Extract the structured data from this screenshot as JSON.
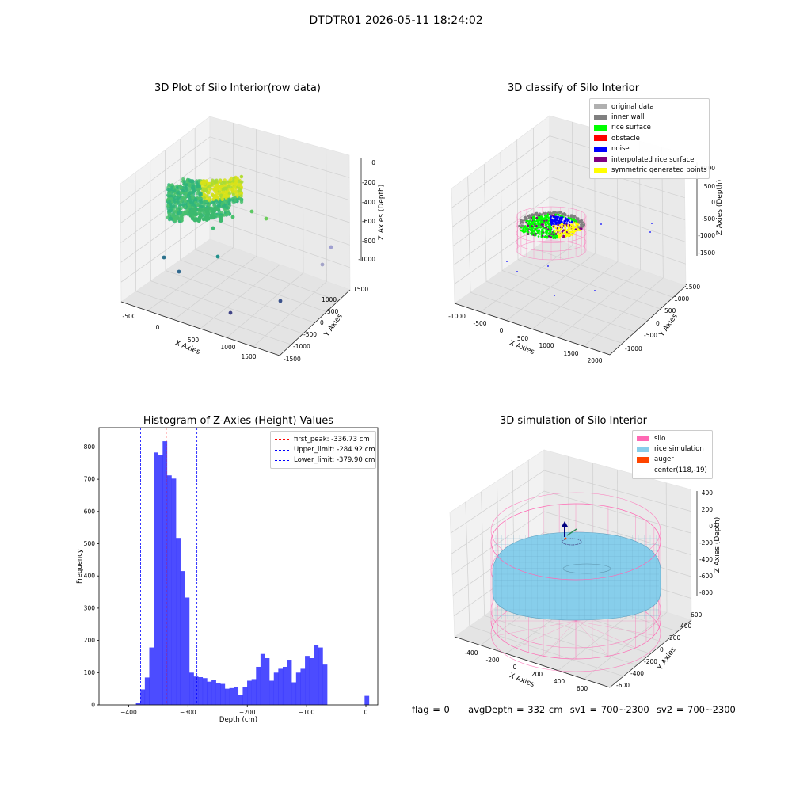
{
  "suptitle": "DTDTR01 2026-05-11 18:24:02",
  "panels": {
    "raw": {
      "title": "3D Plot of Silo Interior(row data)",
      "xlabel": "X Axies",
      "ylabel": "Y Axies",
      "zlabel": "Z Axies (Depth)",
      "xticks": [
        "-500",
        "0",
        "500",
        "1000",
        "1500"
      ],
      "yticks": [
        "1500",
        "1000",
        "500",
        "0",
        "-500",
        "-1000",
        "-1500"
      ],
      "zticks": [
        "0",
        "-200",
        "-400",
        "-600",
        "-800",
        "-1000"
      ]
    },
    "classify": {
      "title": "3D classify of Silo Interior",
      "xlabel": "X Axies",
      "ylabel": "Y Axies",
      "zlabel": "Z Axies (Depth)",
      "xticks": [
        "-1000",
        "-500",
        "0",
        "500",
        "1000",
        "1500",
        "2000"
      ],
      "yticks": [
        "1500",
        "1000",
        "500",
        "0",
        "-500",
        "-1000"
      ],
      "zticks": [
        "1000",
        "500",
        "0",
        "-500",
        "-1000",
        "-1500"
      ],
      "legend": [
        {
          "label": "original data",
          "color": "#b0b0b0"
        },
        {
          "label": "inner wall",
          "color": "#808080"
        },
        {
          "label": "rice surface",
          "color": "#00ff00"
        },
        {
          "label": "obstacle",
          "color": "#ff0000"
        },
        {
          "label": "noise",
          "color": "#0000ff"
        },
        {
          "label": "interpolated rice surface",
          "color": "#800080"
        },
        {
          "label": "symmetric generated points",
          "color": "#ffff00"
        }
      ]
    },
    "simulation": {
      "title": "3D simulation of Silo Interior",
      "xlabel": "X Axies",
      "ylabel": "Y Axies",
      "zlabel": "Z Axies (Depth)",
      "xticks": [
        "-400",
        "-200",
        "0",
        "200",
        "400",
        "600"
      ],
      "yticks": [
        "600",
        "400",
        "200",
        "0",
        "-200",
        "-400",
        "-600"
      ],
      "zticks": [
        "400",
        "200",
        "0",
        "-200",
        "-400",
        "-600",
        "-800"
      ],
      "legend": [
        {
          "label": "silo",
          "color": "#ff69b4"
        },
        {
          "label": "rice simulation",
          "color": "#87ceeb"
        },
        {
          "label": "auger",
          "color": "#ff4500"
        },
        {
          "label": "center(118,-19)",
          "color": ""
        }
      ]
    }
  },
  "chart_data": {
    "type": "bar",
    "title": "Histogram of Z-Axies (Height) Values",
    "xlabel": "Depth (cm)",
    "ylabel": "Frequency",
    "xlim": [
      -450,
      20
    ],
    "ylim": [
      0,
      860
    ],
    "xticks": [
      -400,
      -300,
      -200,
      -100,
      0
    ],
    "yticks": [
      0,
      100,
      200,
      300,
      400,
      500,
      600,
      700,
      800
    ],
    "bar_color": "#0000ff",
    "bin_width": 7.5,
    "bins": [
      {
        "x": -384,
        "value": 5
      },
      {
        "x": -376.5,
        "value": 48
      },
      {
        "x": -369,
        "value": 85
      },
      {
        "x": -361.5,
        "value": 178
      },
      {
        "x": -354,
        "value": 783
      },
      {
        "x": -346.5,
        "value": 775
      },
      {
        "x": -339,
        "value": 818
      },
      {
        "x": -331.5,
        "value": 712
      },
      {
        "x": -324,
        "value": 702
      },
      {
        "x": -316.5,
        "value": 518
      },
      {
        "x": -309,
        "value": 415
      },
      {
        "x": -301.5,
        "value": 333
      },
      {
        "x": -294,
        "value": 100
      },
      {
        "x": -286.5,
        "value": 88
      },
      {
        "x": -279,
        "value": 86
      },
      {
        "x": -271.5,
        "value": 83
      },
      {
        "x": -264,
        "value": 72
      },
      {
        "x": -256.5,
        "value": 78
      },
      {
        "x": -249,
        "value": 68
      },
      {
        "x": -241.5,
        "value": 65
      },
      {
        "x": -234,
        "value": 50
      },
      {
        "x": -226.5,
        "value": 52
      },
      {
        "x": -219,
        "value": 55
      },
      {
        "x": -211.5,
        "value": 30
      },
      {
        "x": -204,
        "value": 55
      },
      {
        "x": -196.5,
        "value": 75
      },
      {
        "x": -189,
        "value": 80
      },
      {
        "x": -181.5,
        "value": 118
      },
      {
        "x": -174,
        "value": 158
      },
      {
        "x": -166.5,
        "value": 145
      },
      {
        "x": -159,
        "value": 75
      },
      {
        "x": -151.5,
        "value": 100
      },
      {
        "x": -144,
        "value": 112
      },
      {
        "x": -136.5,
        "value": 118
      },
      {
        "x": -129,
        "value": 140
      },
      {
        "x": -121.5,
        "value": 70
      },
      {
        "x": -114,
        "value": 100
      },
      {
        "x": -106.5,
        "value": 112
      },
      {
        "x": -99,
        "value": 152
      },
      {
        "x": -91.5,
        "value": 145
      },
      {
        "x": -84,
        "value": 185
      },
      {
        "x": -76.5,
        "value": 178
      },
      {
        "x": -69,
        "value": 125
      },
      {
        "x": -61.5,
        "value": 0
      },
      {
        "x": 1.5,
        "value": 28
      }
    ],
    "vlines": [
      {
        "x": -336.73,
        "color": "#ff0000",
        "label": "first_peak: -336.73 cm"
      },
      {
        "x": -284.92,
        "color": "#0000ff",
        "label": "Upper_limit: -284.92 cm"
      },
      {
        "x": -379.9,
        "color": "#0000ff",
        "label": "Lower_limit: -379.90 cm"
      }
    ]
  },
  "footer": {
    "flag": "flag = 0",
    "avg": "avgDepth = 332 cm",
    "sv1": "sv1 = 700~2300",
    "sv2": "sv2 = 700~2300"
  }
}
